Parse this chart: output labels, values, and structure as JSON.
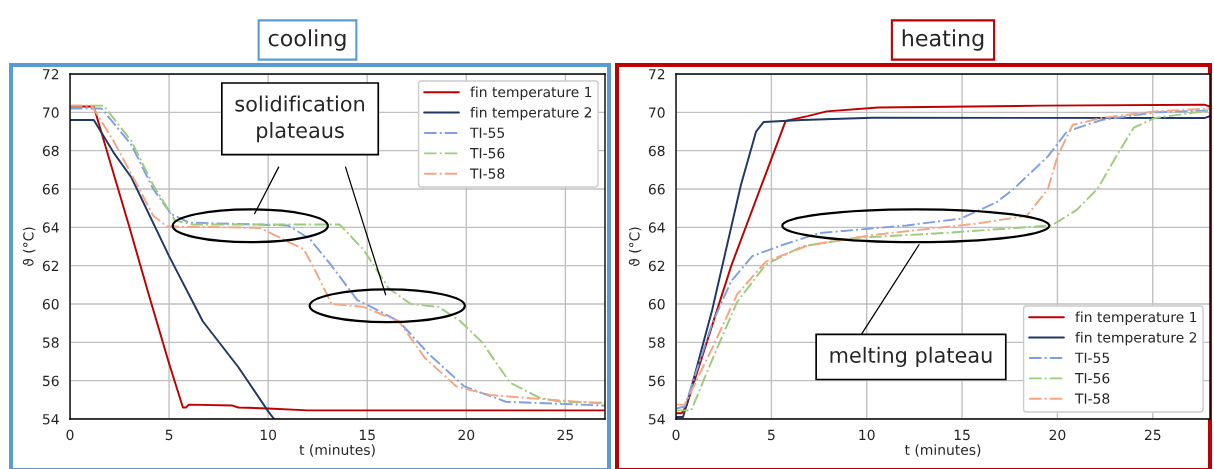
{
  "chart_data": [
    {
      "type": "line",
      "title": "cooling",
      "xlabel": "t (minutes)",
      "ylabel": "ϑ (°C)",
      "xlim": [
        0,
        27
      ],
      "ylim": [
        54,
        72
      ],
      "xticks": [
        0,
        5,
        10,
        15,
        20,
        25
      ],
      "yticks": [
        54,
        56,
        58,
        60,
        62,
        64,
        66,
        68,
        70,
        72
      ],
      "grid": true,
      "legend": "top right",
      "annotations": [
        "solidification plateaus"
      ],
      "series": [
        {
          "name": "fin temperature 1",
          "color": "#c00000",
          "line_style": "solid",
          "x": [
            0,
            1.2,
            2,
            3,
            4,
            5,
            5.7,
            5.85,
            6.0,
            8.2,
            8.5,
            10,
            12,
            27
          ],
          "values": [
            70.3,
            70.3,
            67.5,
            64,
            60.4,
            56.9,
            54.6,
            54.6,
            54.75,
            54.7,
            54.6,
            54.55,
            54.45,
            54.45
          ]
        },
        {
          "name": "fin temperature 2",
          "color": "#1f3864",
          "line_style": "solid",
          "x": [
            0,
            1.2,
            2.2,
            3.1,
            5,
            6.7,
            8.5,
            10,
            10.3
          ],
          "values": [
            69.6,
            69.6,
            67.9,
            66.6,
            62.5,
            59.1,
            56.7,
            54.4,
            54.0
          ]
        },
        {
          "name": "TI-55",
          "color": "#7fa0e0",
          "line_style": "dashdot",
          "x": [
            0,
            1.6,
            3.1,
            4.2,
            5.1,
            6.0,
            11,
            12.1,
            13.2,
            14.5,
            15.2,
            16.6,
            18.1,
            19.9,
            21.2,
            22,
            27
          ],
          "values": [
            70.2,
            70.2,
            68.3,
            66.0,
            64.7,
            64.25,
            64.1,
            63.4,
            62.0,
            60.2,
            59.85,
            59.1,
            57.4,
            55.7,
            55.2,
            54.9,
            54.7
          ]
        },
        {
          "name": "TI-56",
          "color": "#9dcc7a",
          "line_style": "dashdot",
          "x": [
            0,
            1.7,
            3.1,
            4.2,
            5.3,
            6.2,
            13.6,
            14.8,
            16.1,
            17.2,
            18.6,
            19.7,
            20.8,
            22.2,
            23.7,
            24.8,
            27
          ],
          "values": [
            70.35,
            70.35,
            68.5,
            66.2,
            64.35,
            64.15,
            64.15,
            62.85,
            60.8,
            60.0,
            59.85,
            59.1,
            58.0,
            55.9,
            55.1,
            54.9,
            54.85
          ]
        },
        {
          "name": "TI-58",
          "color": "#f4a582",
          "line_style": "dashdot",
          "x": [
            0,
            1.1,
            2.2,
            3.5,
            4.2,
            4.9,
            9.6,
            10.7,
            11.8,
            12.3,
            13.2,
            14.8,
            16.6,
            17.9,
            19.5,
            21.2,
            23,
            27
          ],
          "values": [
            70.35,
            70.35,
            68.5,
            66.0,
            64.6,
            64.05,
            63.97,
            63.4,
            62.85,
            61.9,
            60.0,
            59.85,
            59.1,
            57.2,
            55.7,
            55.25,
            55.1,
            54.8
          ]
        }
      ]
    },
    {
      "type": "line",
      "title": "heating",
      "xlabel": "t (minutes)",
      "ylabel": "ϑ (°C)",
      "xlim": [
        0,
        28
      ],
      "ylim": [
        54,
        72
      ],
      "xticks": [
        0,
        5,
        10,
        15,
        20,
        25
      ],
      "yticks": [
        54,
        56,
        58,
        60,
        62,
        64,
        66,
        68,
        70,
        72
      ],
      "grid": true,
      "legend": "bottom right",
      "annotations": [
        "melting plateau"
      ],
      "series": [
        {
          "name": "fin temperature 1",
          "color": "#c00000",
          "line_style": "solid",
          "x": [
            0,
            0.3,
            0.55,
            2.9,
            4.9,
            5.75,
            6.9,
            7.9,
            10.6,
            19.2,
            27.7,
            28
          ],
          "values": [
            54.3,
            54.3,
            54.7,
            62.0,
            67.3,
            69.55,
            69.8,
            70.05,
            70.25,
            70.35,
            70.4,
            70.3
          ]
        },
        {
          "name": "fin temperature 2",
          "color": "#1f3864",
          "line_style": "solid",
          "x": [
            0,
            0.37,
            0.55,
            1.9,
            3.4,
            4.2,
            4.6,
            6.6,
            10.3,
            27.7,
            28
          ],
          "values": [
            54.1,
            54.1,
            54.7,
            59.7,
            66.2,
            69.0,
            69.5,
            69.6,
            69.72,
            69.7,
            69.8
          ]
        },
        {
          "name": "TI-55",
          "color": "#7fa0e0",
          "line_style": "dashdot",
          "x": [
            0,
            0.46,
            1.9,
            2.9,
            4.0,
            5.5,
            7.5,
            12.1,
            14.9,
            16.8,
            17.7,
            19.5,
            20.5,
            22.3,
            25.1,
            28
          ],
          "values": [
            54.55,
            54.65,
            59.0,
            61.2,
            62.5,
            63.05,
            63.7,
            64.1,
            64.45,
            65.3,
            66.0,
            67.7,
            69.0,
            69.6,
            70.0,
            70.1
          ]
        },
        {
          "name": "TI-56",
          "color": "#9dcc7a",
          "line_style": "dashdot",
          "x": [
            0,
            0.8,
            1.9,
            3.2,
            4.7,
            6.6,
            9.4,
            14,
            19.7,
            21,
            22.1,
            23.2,
            24,
            25.1,
            28
          ],
          "values": [
            54.45,
            54.45,
            57.1,
            60.1,
            62.05,
            63.0,
            63.45,
            63.7,
            64.1,
            64.9,
            66.0,
            67.9,
            69.2,
            69.7,
            70.1
          ]
        },
        {
          "name": "TI-58",
          "color": "#f4a582",
          "line_style": "dashdot",
          "x": [
            0,
            0.46,
            1.9,
            3.2,
            4.7,
            6.9,
            10.3,
            15.8,
            18.4,
            19.5,
            20,
            20.8,
            22.3,
            25.1,
            28
          ],
          "values": [
            54.75,
            54.75,
            57.7,
            60.5,
            62.2,
            63.05,
            63.6,
            64.2,
            64.6,
            66.0,
            67.7,
            69.35,
            69.7,
            70.05,
            70.2
          ]
        }
      ]
    }
  ]
}
